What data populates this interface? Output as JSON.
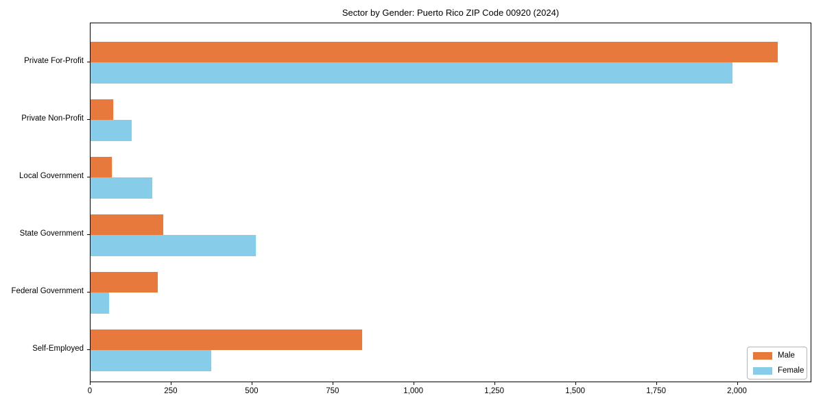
{
  "chart_data": {
    "type": "bar",
    "orientation": "horizontal",
    "title": "Sector by Gender: Puerto Rico ZIP Code 00920 (2024)",
    "categories": [
      "Private For-Profit",
      "Private Non-Profit",
      "Local Government",
      "State Government",
      "Federal Government",
      "Self-Employed"
    ],
    "series": [
      {
        "name": "Male",
        "color": "#E8793C",
        "values": [
          2123,
          69,
          65,
          225,
          207,
          840
        ]
      },
      {
        "name": "Female",
        "color": "#87CDE9",
        "values": [
          1983,
          128,
          190,
          510,
          57,
          372
        ]
      }
    ],
    "xlabel": "",
    "ylabel": "",
    "xlim": [
      0,
      2230
    ],
    "xticks": [
      0,
      250,
      500,
      750,
      1000,
      1250,
      1500,
      1750,
      2000
    ],
    "xtick_labels": [
      "0",
      "250",
      "500",
      "750",
      "1,000",
      "1,250",
      "1,500",
      "1,750",
      "2,000"
    ],
    "grid": false,
    "legend": {
      "position": "lower right",
      "entries": [
        "Male",
        "Female"
      ]
    }
  }
}
